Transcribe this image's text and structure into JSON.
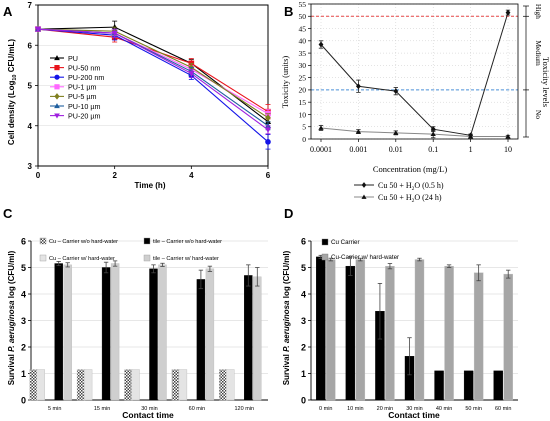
{
  "panels": [
    {
      "letter": "A"
    },
    {
      "letter": "B"
    },
    {
      "letter": "C"
    },
    {
      "letter": "D"
    }
  ],
  "chart_data": [
    {
      "panel": "A",
      "type": "line",
      "xlabel": "Time (h)",
      "ylabel_main": "Cell density (Log",
      "ylabel_sub": "10",
      "ylabel_end": " CFU/mL)",
      "xlim": [
        0,
        6
      ],
      "ylim": [
        3,
        7
      ],
      "xticks": [
        "0",
        "2",
        "4",
        "6"
      ],
      "yticks": [
        "3",
        "4",
        "5",
        "6",
        "7"
      ],
      "x": [
        0,
        2,
        4,
        6
      ],
      "legend_position": "left",
      "series": [
        {
          "name": "PU",
          "color": "#000000",
          "marker": "triangle",
          "values": [
            6.4,
            6.45,
            5.55,
            4.1
          ],
          "err": [
            0.05,
            0.15,
            0.1,
            0.15
          ]
        },
        {
          "name": "PU-50 nm",
          "color": "#e8141c",
          "marker": "square",
          "values": [
            6.4,
            6.2,
            5.55,
            4.35
          ],
          "err": [
            0.05,
            0.12,
            0.12,
            0.18
          ]
        },
        {
          "name": "PU-200 nm",
          "color": "#1414e8",
          "marker": "circle",
          "values": [
            6.4,
            6.25,
            5.25,
            3.6
          ],
          "err": [
            0.05,
            0.12,
            0.1,
            0.18
          ]
        },
        {
          "name": "PU-1 µm",
          "color": "#ff66ff",
          "marker": "square",
          "values": [
            6.4,
            6.3,
            5.4,
            4.3
          ],
          "err": [
            0.05,
            0.1,
            0.1,
            0.1
          ]
        },
        {
          "name": "PU-5 µm",
          "color": "#7f7f1f",
          "marker": "diamond",
          "values": [
            6.4,
            6.35,
            5.45,
            4.2
          ],
          "err": [
            0.05,
            0.1,
            0.1,
            0.1
          ]
        },
        {
          "name": "PU-10 µm",
          "color": "#1f5f9f",
          "marker": "triangle",
          "values": [
            6.4,
            6.3,
            5.35,
            4.0
          ],
          "err": [
            0.05,
            0.1,
            0.1,
            0.1
          ]
        },
        {
          "name": "PU-20 µm",
          "color": "#9f1fdf",
          "marker": "triangle-down",
          "values": [
            6.4,
            6.3,
            5.3,
            3.9
          ],
          "err": [
            0.05,
            0.1,
            0.1,
            0.1
          ]
        }
      ]
    },
    {
      "panel": "B",
      "type": "line",
      "xlabel": "Concentration (mg/L)",
      "ylabel": "Toxicity (units)",
      "ylabel_right": "Toxicity levels",
      "x_scale": "log",
      "x": [
        0.0001,
        0.001,
        0.01,
        0.1,
        1,
        10
      ],
      "xticks": [
        "0.0001",
        "0.001",
        "0.01",
        "0.1",
        "1",
        "10"
      ],
      "ylim": [
        0,
        55
      ],
      "yticks": [
        "0",
        "5",
        "10",
        "15",
        "20",
        "25",
        "30",
        "35",
        "40",
        "45",
        "50",
        "55"
      ],
      "right_levels": [
        "High",
        "Medium",
        "No"
      ],
      "reference_lines": [
        {
          "y": 50,
          "color": "#e64545"
        },
        {
          "y": 20,
          "color": "#4a90d9"
        }
      ],
      "grid": true,
      "legend_position": "bottom",
      "series": [
        {
          "name_pre": "Cu 50 + H",
          "name_sub": "2",
          "name_post": "O (0.5 h)",
          "marker": "diamond",
          "values": [
            38.5,
            21.5,
            19.5,
            4.0,
            1.5,
            51.5
          ],
          "err": [
            1.5,
            2.5,
            1.5,
            1.0,
            0.5,
            1.0
          ]
        },
        {
          "name_pre": "Cu 50 + H",
          "name_sub": "2",
          "name_post": "O (24 h)",
          "marker": "triangle",
          "values": [
            4.5,
            3.0,
            2.5,
            2.0,
            1.0,
            1.0
          ],
          "err": [
            1.0,
            0.8,
            0.8,
            1.5,
            0.5,
            0.5
          ]
        }
      ]
    },
    {
      "panel": "C",
      "type": "bar",
      "xlabel": "Contact time",
      "ylabel_pre": "Survival ",
      "ylabel_italic": "P. aeruginosa",
      "ylabel_post": " log (CFU/ml)",
      "ylim": [
        0,
        6
      ],
      "yticks": [
        "0",
        "1",
        "2",
        "3",
        "4",
        "5",
        "6"
      ],
      "categories": [
        "5 min",
        "15 min",
        "30 min",
        "60 min",
        "120 min"
      ],
      "legend_position": "top",
      "series": [
        {
          "name": "Cu – Carrier w/o hard-water",
          "fill": "check",
          "values": [
            1.15,
            1.15,
            1.15,
            1.15,
            1.15
          ],
          "err": [
            0,
            0,
            0,
            0,
            0
          ]
        },
        {
          "name": "Cu – Carrier w/ hard-water",
          "fill": "#e4e4e4",
          "values": [
            1.15,
            1.15,
            1.15,
            1.15,
            1.15
          ],
          "err": [
            0,
            0,
            0,
            0,
            0
          ]
        },
        {
          "name": "tile – Carrier w/o hard-water",
          "fill": "#000000",
          "values": [
            5.15,
            5.0,
            4.95,
            4.55,
            4.7
          ],
          "err": [
            0.08,
            0.2,
            0.15,
            0.35,
            0.4
          ]
        },
        {
          "name": "tile – Carrier w/ hard-water",
          "fill": "#cfcfcf",
          "values": [
            5.1,
            5.15,
            5.1,
            4.95,
            4.65
          ],
          "err": [
            0.08,
            0.1,
            0.06,
            0.1,
            0.35
          ]
        }
      ]
    },
    {
      "panel": "D",
      "type": "bar",
      "xlabel": "Contact time",
      "ylabel_pre": "Survival ",
      "ylabel_italic": "P. aeruginosa",
      "ylabel_post": " log (CFU/ml)",
      "ylim": [
        0,
        6
      ],
      "yticks": [
        "0",
        "1",
        "2",
        "3",
        "4",
        "5",
        "6"
      ],
      "categories": [
        "0 min",
        "10 min",
        "20 min",
        "30 min",
        "40 min",
        "50 min",
        "60 min"
      ],
      "legend_position": "top",
      "series": [
        {
          "name": "Cu Carrier",
          "fill": "#000000",
          "values": [
            5.4,
            5.05,
            3.35,
            1.65,
            1.1,
            1.1,
            1.1
          ],
          "err": [
            0.06,
            0.35,
            1.05,
            0.7,
            0,
            0,
            0
          ]
        },
        {
          "name": "Cu-Carrier w/ hard-water",
          "fill": "#a6a6a6",
          "values": [
            5.3,
            5.3,
            5.05,
            5.3,
            5.05,
            4.8,
            4.75
          ],
          "err": [
            0.05,
            0.05,
            0.1,
            0.05,
            0.05,
            0.3,
            0.15
          ]
        }
      ]
    }
  ]
}
